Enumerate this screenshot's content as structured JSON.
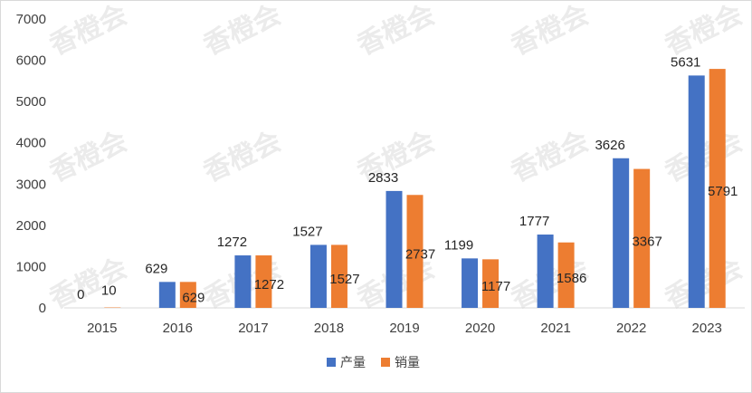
{
  "watermark": "香橙会",
  "colors": {
    "production": "#4472c4",
    "sales": "#ed7d31",
    "axis": "#d9d9d9",
    "text": "#404040"
  },
  "chart_data": {
    "type": "bar",
    "title": "",
    "xlabel": "",
    "ylabel": "",
    "ylim": [
      0,
      7000
    ],
    "yticks": [
      0,
      1000,
      2000,
      3000,
      4000,
      5000,
      6000,
      7000
    ],
    "grid": false,
    "legend": "bottom",
    "categories": [
      "2015",
      "2016",
      "2017",
      "2018",
      "2019",
      "2020",
      "2021",
      "2022",
      "2023"
    ],
    "series": [
      {
        "name": "产量",
        "values": [
          0,
          629,
          1272,
          1527,
          2833,
          1199,
          1777,
          3626,
          5631
        ]
      },
      {
        "name": "销量",
        "values": [
          10,
          629,
          1272,
          1527,
          2737,
          1177,
          1586,
          3367,
          5791
        ]
      }
    ]
  }
}
